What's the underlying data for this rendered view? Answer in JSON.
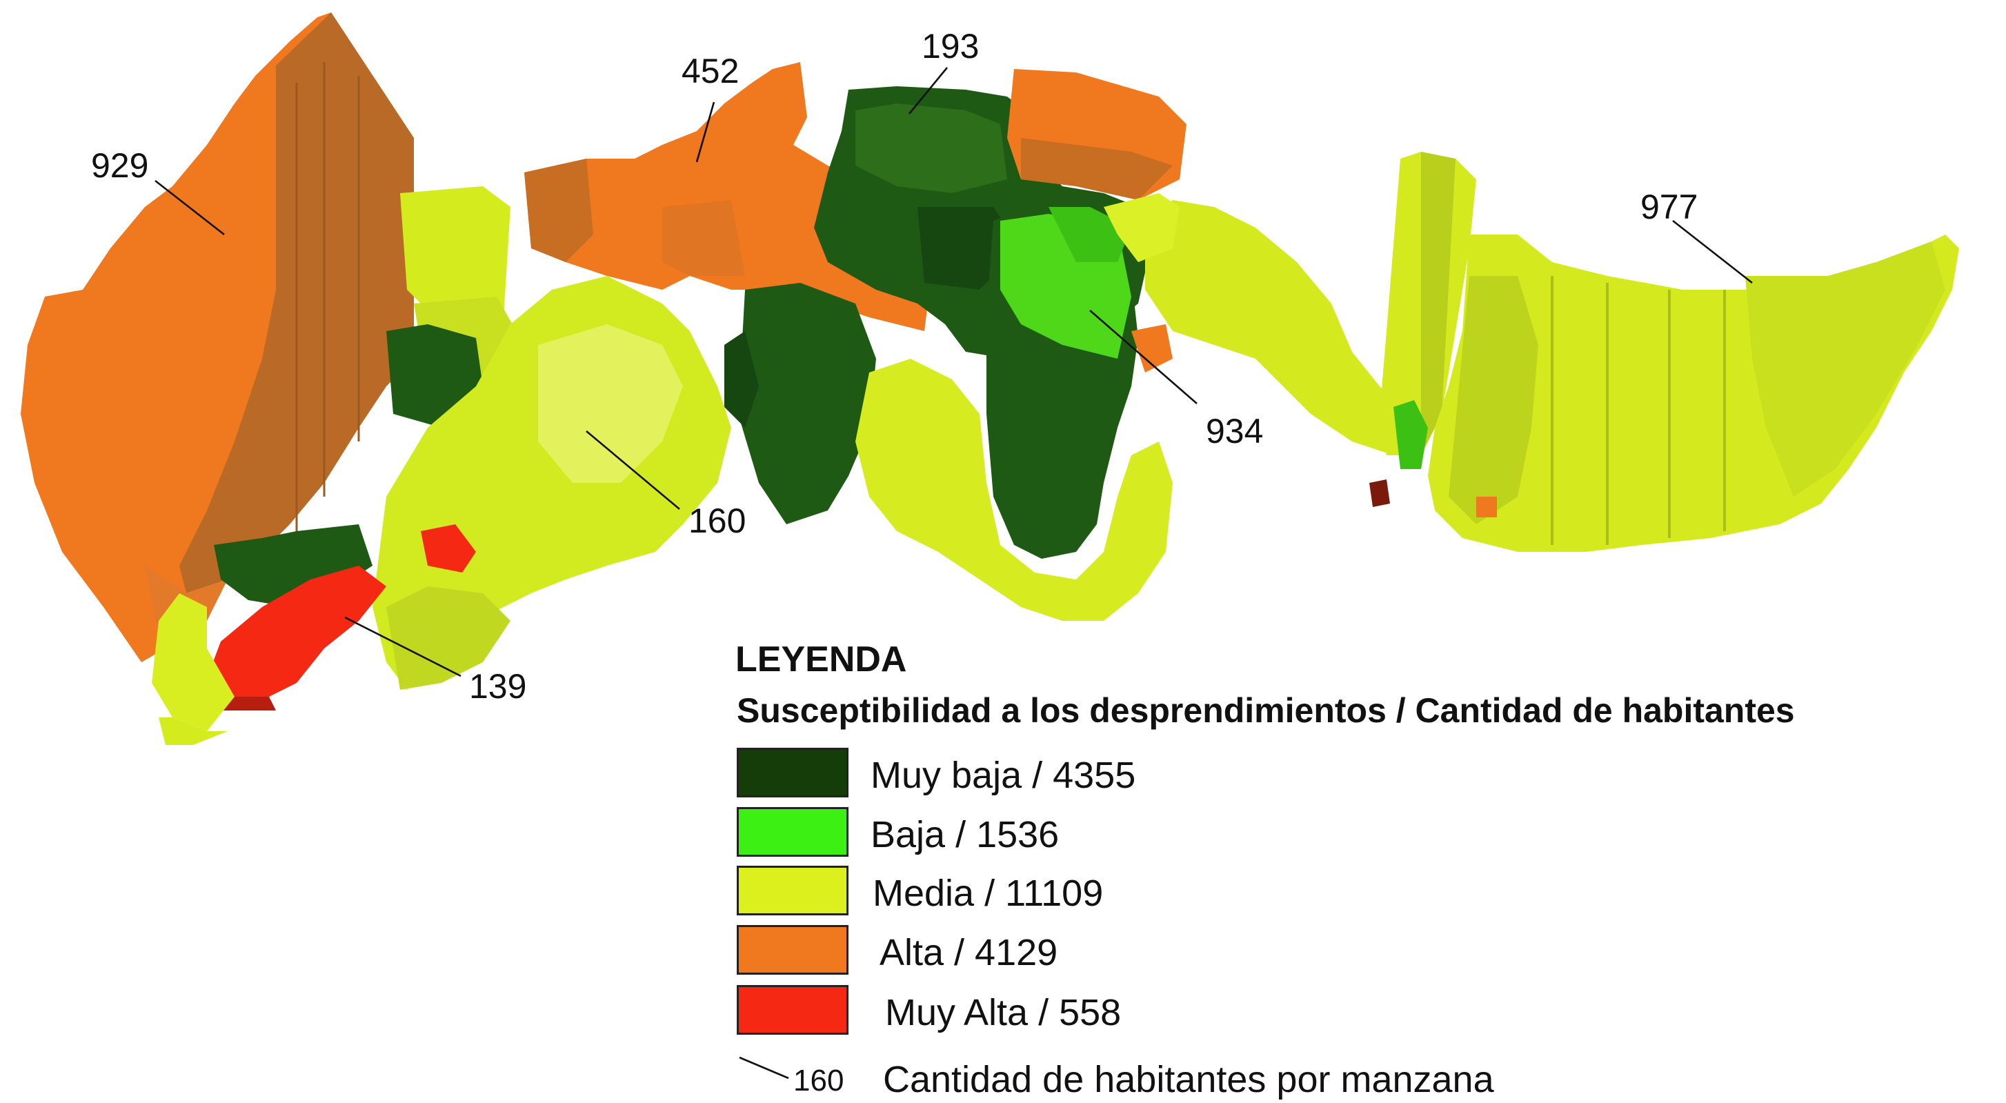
{
  "legend": {
    "title": "LEYENDA",
    "subtitle": "Susceptibilidad a los desprendimientos / Cantidad de habitantes",
    "items": [
      {
        "label": "Muy baja / 4355",
        "color": "#143d0a"
      },
      {
        "label": "Baja / 1536",
        "color": "#3cf014"
      },
      {
        "label": "Media / 11109",
        "color": "#dcf01e"
      },
      {
        "label": "Alta / 4129",
        "color": "#f0781e"
      },
      {
        "label": "Muy Alta / 558",
        "color": "#f52814"
      }
    ],
    "sample_value": "160",
    "sample_text": "Cantidad de habitantes por manzana"
  },
  "map_labels": [
    "929",
    "452",
    "193",
    "977",
    "934",
    "160",
    "139"
  ]
}
